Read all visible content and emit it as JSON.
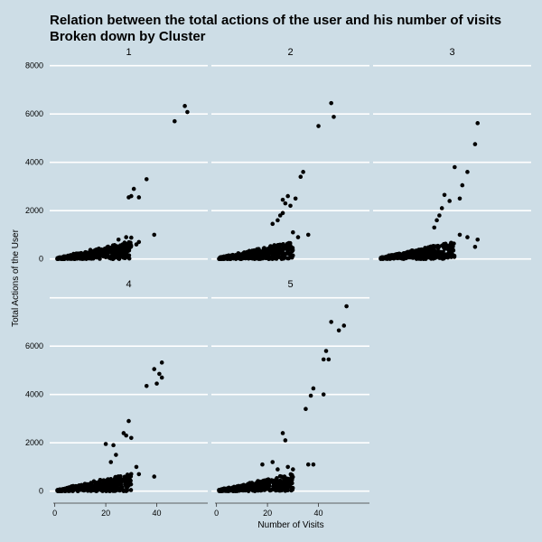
{
  "chart_data": {
    "type": "scatter",
    "title": "Relation between the total actions of the user and his number of visits",
    "subtitle": "Broken down by Cluster",
    "xlabel": "Number of Visits",
    "ylabel": "Total Actions of the User",
    "xlim": [
      -2,
      60
    ],
    "ylim": [
      -350,
      8250
    ],
    "x_ticks": [
      0,
      20,
      40
    ],
    "y_ticks": [
      0,
      2000,
      4000,
      6000,
      8000
    ],
    "grid": "horizontal",
    "background": "#cddde6",
    "point_color": "#000000",
    "panels": [
      {
        "label": "1",
        "bulk": {
          "x_min": 1,
          "x_max": 30,
          "y_max": 900
        },
        "points": [
          [
            28,
            900
          ],
          [
            30,
            880
          ],
          [
            33,
            700
          ],
          [
            32,
            600
          ],
          [
            25,
            800
          ],
          [
            39,
            1000
          ],
          [
            29,
            2550
          ],
          [
            30,
            2600
          ],
          [
            31,
            2900
          ],
          [
            33,
            2550
          ],
          [
            36,
            3300
          ],
          [
            47,
            5700
          ],
          [
            51,
            6330
          ],
          [
            52,
            6080
          ]
        ]
      },
      {
        "label": "2",
        "bulk": {
          "x_min": 1,
          "x_max": 30,
          "y_max": 900
        },
        "points": [
          [
            22,
            1450
          ],
          [
            24,
            1600
          ],
          [
            25,
            1800
          ],
          [
            26,
            1900
          ],
          [
            26,
            2450
          ],
          [
            27,
            2300
          ],
          [
            28,
            2600
          ],
          [
            29,
            2200
          ],
          [
            31,
            2500
          ],
          [
            33,
            3400
          ],
          [
            34,
            3600
          ],
          [
            40,
            5500
          ],
          [
            45,
            6450
          ],
          [
            46,
            5880
          ],
          [
            30,
            1100
          ],
          [
            32,
            900
          ],
          [
            36,
            1000
          ]
        ]
      },
      {
        "label": "3",
        "bulk": {
          "x_min": 1,
          "x_max": 30,
          "y_max": 900
        },
        "points": [
          [
            22,
            1300
          ],
          [
            23,
            1600
          ],
          [
            24,
            1800
          ],
          [
            25,
            2100
          ],
          [
            26,
            2650
          ],
          [
            28,
            2400
          ],
          [
            30,
            3800
          ],
          [
            32,
            2500
          ],
          [
            33,
            3050
          ],
          [
            35,
            3600
          ],
          [
            38,
            4750
          ],
          [
            39,
            5620
          ],
          [
            32,
            1000
          ],
          [
            35,
            900
          ],
          [
            39,
            800
          ],
          [
            38,
            500
          ]
        ]
      },
      {
        "label": "4",
        "bulk": {
          "x_min": 1,
          "x_max": 30,
          "y_max": 900
        },
        "points": [
          [
            20,
            1950
          ],
          [
            23,
            1900
          ],
          [
            22,
            1200
          ],
          [
            24,
            1500
          ],
          [
            27,
            2400
          ],
          [
            28,
            2300
          ],
          [
            29,
            2900
          ],
          [
            30,
            2200
          ],
          [
            32,
            1000
          ],
          [
            33,
            700
          ],
          [
            36,
            4350
          ],
          [
            39,
            5050
          ],
          [
            40,
            4450
          ],
          [
            41,
            4850
          ],
          [
            42,
            5320
          ],
          [
            42,
            4700
          ],
          [
            39,
            600
          ]
        ]
      },
      {
        "label": "5",
        "bulk": {
          "x_min": 1,
          "x_max": 30,
          "y_max": 900
        },
        "points": [
          [
            18,
            1100
          ],
          [
            22,
            1200
          ],
          [
            24,
            900
          ],
          [
            26,
            2400
          ],
          [
            27,
            2100
          ],
          [
            28,
            1000
          ],
          [
            30,
            900
          ],
          [
            35,
            3400
          ],
          [
            36,
            1100
          ],
          [
            37,
            3950
          ],
          [
            38,
            4250
          ],
          [
            38,
            1100
          ],
          [
            42,
            4000
          ],
          [
            42,
            5450
          ],
          [
            43,
            5800
          ],
          [
            44,
            5450
          ],
          [
            45,
            7000
          ],
          [
            48,
            6650
          ],
          [
            50,
            6850
          ],
          [
            51,
            7650
          ]
        ]
      }
    ]
  }
}
